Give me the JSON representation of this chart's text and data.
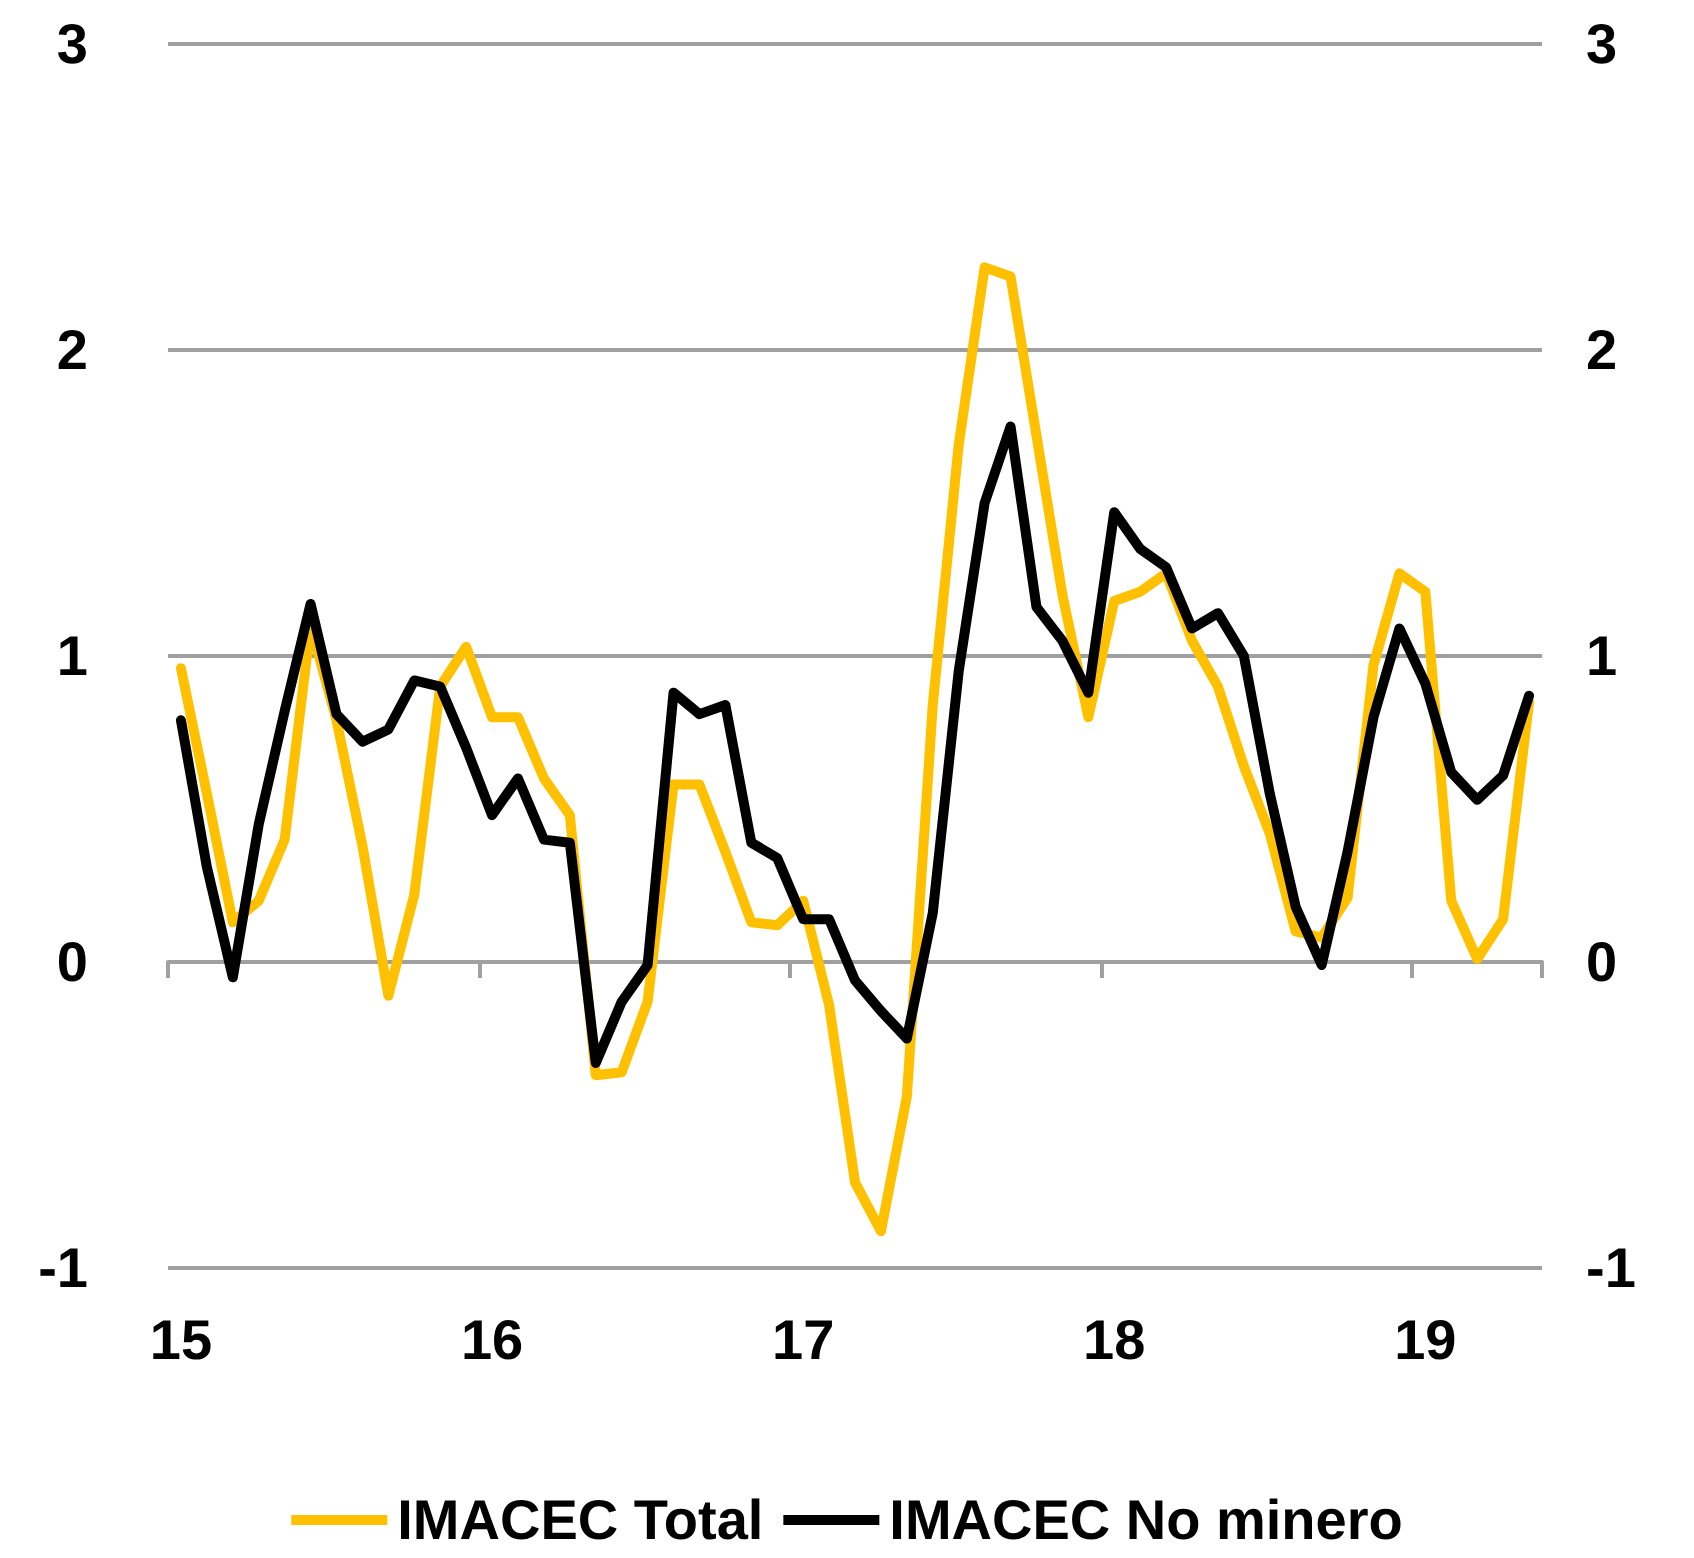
{
  "chart_data": {
    "type": "line",
    "categories": [
      "15",
      null,
      null,
      null,
      null,
      null,
      null,
      null,
      null,
      null,
      null,
      null,
      "16",
      null,
      null,
      null,
      null,
      null,
      null,
      null,
      null,
      null,
      null,
      null,
      "17",
      null,
      null,
      null,
      null,
      null,
      null,
      null,
      null,
      null,
      null,
      null,
      "18",
      null,
      null,
      null,
      null,
      null,
      null,
      null,
      null,
      null,
      null,
      null,
      "19",
      null,
      null,
      null,
      null
    ],
    "series": [
      {
        "name": "IMACEC Total",
        "color": "#ffc000",
        "values": [
          0.96,
          0.55,
          0.13,
          0.2,
          0.4,
          1.1,
          0.79,
          0.38,
          -0.11,
          0.22,
          0.9,
          1.03,
          0.8,
          0.8,
          0.6,
          0.48,
          -0.37,
          -0.36,
          -0.13,
          0.58,
          0.58,
          0.36,
          0.13,
          0.12,
          0.2,
          -0.14,
          -0.72,
          -0.88,
          -0.44,
          0.84,
          1.69,
          2.27,
          2.24,
          1.72,
          1.2,
          0.8,
          1.18,
          1.21,
          1.27,
          1.05,
          0.9,
          0.64,
          0.42,
          0.1,
          0.08,
          0.21,
          0.97,
          1.27,
          1.21,
          0.2,
          0.01,
          0.14,
          0.85
        ]
      },
      {
        "name": "IMACEC No minero",
        "color": "#000000",
        "values": [
          0.79,
          0.31,
          -0.05,
          0.45,
          0.82,
          1.17,
          0.81,
          0.72,
          0.76,
          0.92,
          0.9,
          0.7,
          0.48,
          0.6,
          0.4,
          0.39,
          -0.33,
          -0.13,
          -0.01,
          0.88,
          0.81,
          0.84,
          0.39,
          0.34,
          0.14,
          0.14,
          -0.06,
          -0.16,
          -0.25,
          0.16,
          0.95,
          1.5,
          1.75,
          1.16,
          1.05,
          0.88,
          1.47,
          1.35,
          1.29,
          1.09,
          1.14,
          1.0,
          0.55,
          0.18,
          -0.01,
          0.36,
          0.8,
          1.09,
          0.91,
          0.62,
          0.53,
          0.61,
          0.87
        ]
      }
    ],
    "ylim": [
      -1,
      3
    ],
    "yticks": [
      -1,
      0,
      1,
      2,
      3
    ],
    "y2lim": [
      -1,
      3
    ],
    "y2ticks": [
      -1,
      0,
      1,
      2,
      3
    ],
    "grid": "y",
    "legend": "bottom",
    "marker": "none",
    "line_style": "solid"
  }
}
